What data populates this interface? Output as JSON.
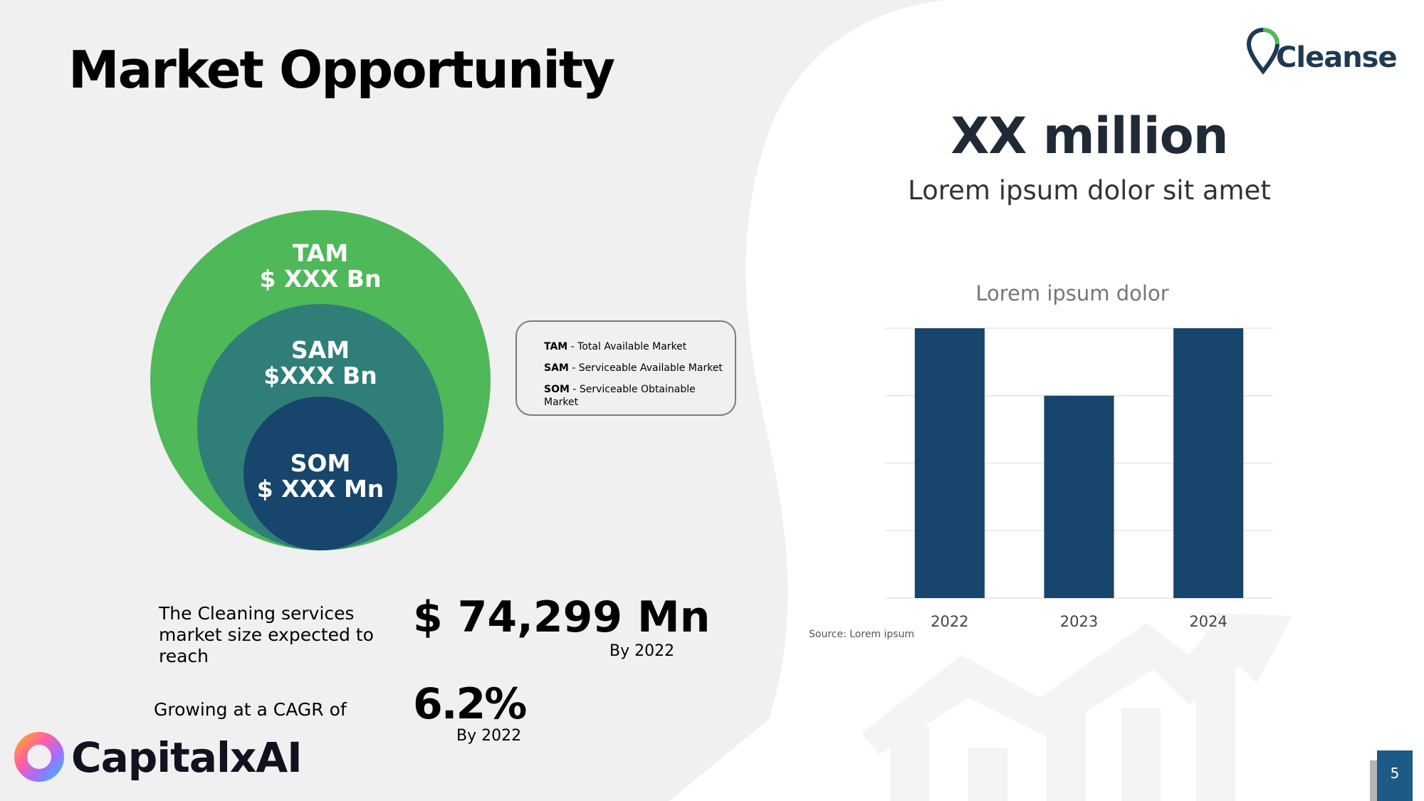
{
  "slide": {
    "title": "Market Opportunity",
    "page_number": "5"
  },
  "brand": {
    "cleanse_logo_text": "Cleanse",
    "capitalxai_logo_text": "CapitalxAI"
  },
  "market_circles": {
    "tam": {
      "name": "TAM",
      "value": "$ XXX Bn",
      "color": "#4fb858"
    },
    "sam": {
      "name": "SAM",
      "value": "$XXX Bn",
      "color": "#2f7f78"
    },
    "som": {
      "name": "SOM",
      "value": "$ XXX Mn",
      "color": "#17456b"
    }
  },
  "legend": {
    "tam": {
      "abbr": "TAM",
      "desc": " - Total Available Market"
    },
    "sam": {
      "abbr": "SAM",
      "desc": " - Serviceable Available Market"
    },
    "som": {
      "abbr": "SOM",
      "desc": " - Serviceable Obtainable Market"
    }
  },
  "stats": {
    "market_size": {
      "label": "The Cleaning services market size expected to reach",
      "value": "$ 74,299 Mn",
      "by": "By 2022"
    },
    "cagr": {
      "label": "Growing at a CAGR of",
      "value": "6.2%",
      "by": "By 2022"
    }
  },
  "headline": {
    "value": "XX million",
    "subtitle": "Lorem ipsum dolor sit amet"
  },
  "source": "Source: Lorem ipsum",
  "colors": {
    "bar": "#17456b",
    "grid": "#e6e6e6",
    "background": "#f0f0f0",
    "panel": "#ffffff"
  },
  "chart_data": {
    "type": "bar",
    "title": "Lorem ipsum dolor",
    "categories": [
      "2022",
      "2023",
      "2024"
    ],
    "values": [
      4,
      3,
      4
    ],
    "ylim": [
      0,
      4
    ],
    "grid": true,
    "xlabel": "",
    "ylabel": ""
  }
}
